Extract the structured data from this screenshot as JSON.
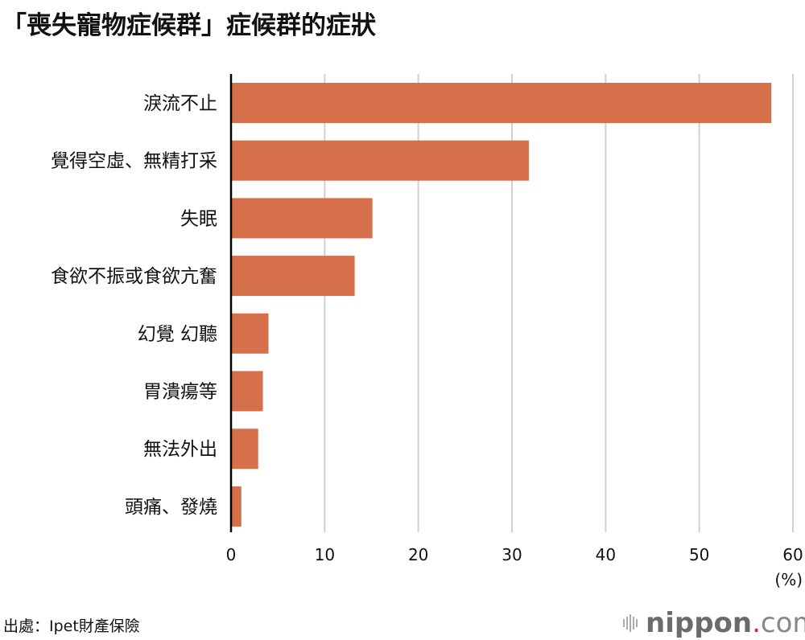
{
  "chart_data": {
    "type": "bar",
    "orientation": "horizontal",
    "title": "「喪失寵物症候群」症候群的症狀",
    "categories": [
      "淚流不止",
      "覺得空虛、無精打采",
      "失眠",
      "食欲不振或食欲亢奮",
      "幻覺 幻聽",
      "胃潰瘍等",
      "無法外出",
      "頭痛、發燒"
    ],
    "values": [
      57.7,
      31.8,
      15.1,
      13.2,
      4.0,
      3.4,
      2.9,
      1.1
    ],
    "xlabel": "(%)",
    "xlim": [
      0,
      60
    ],
    "xticks": [
      "0",
      "10",
      "20",
      "30",
      "40",
      "50",
      "60"
    ],
    "grid": true,
    "bar_color": "#d5704b",
    "grid_color": "#d0d0d0"
  },
  "source": "出處：Ipet財產保險",
  "logo": {
    "name": "nippon",
    "dot": ".",
    "tld": "com"
  }
}
